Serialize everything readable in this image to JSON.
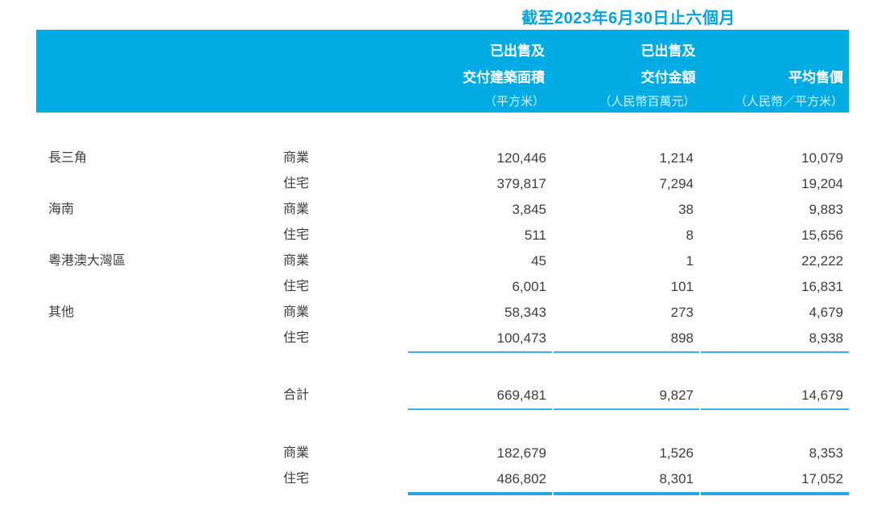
{
  "page": {
    "title": "截至2023年6月30日止六個月",
    "accent_color": "#00ACE3",
    "rule_color": "#35B3E4",
    "text_color": "#3D3D3D"
  },
  "table": {
    "header": {
      "col_area": {
        "line1": "已出售及",
        "line2": "交付建築面積",
        "unit": "（平方米）"
      },
      "col_amount": {
        "line1": "已出售及",
        "line2": "交付金額",
        "unit": "（人民幣百萬元）"
      },
      "col_price": {
        "line1": "",
        "line2": "平均售價",
        "unit": "（人民幣／平方米）"
      }
    },
    "rows": [
      {
        "region": "長三角",
        "type": "商業",
        "area": "120,446",
        "amount": "1,214",
        "price": "10,079"
      },
      {
        "region": "",
        "type": "住宅",
        "area": "379,817",
        "amount": "7,294",
        "price": "19,204"
      },
      {
        "region": "海南",
        "type": "商業",
        "area": "3,845",
        "amount": "38",
        "price": "9,883"
      },
      {
        "region": "",
        "type": "住宅",
        "area": "511",
        "amount": "8",
        "price": "15,656"
      },
      {
        "region": "粵港澳大灣區",
        "type": "商業",
        "area": "45",
        "amount": "1",
        "price": "22,222"
      },
      {
        "region": "",
        "type": "住宅",
        "area": "6,001",
        "amount": "101",
        "price": "16,831"
      },
      {
        "region": "其他",
        "type": "商業",
        "area": "58,343",
        "amount": "273",
        "price": "4,679"
      },
      {
        "region": "",
        "type": "住宅",
        "area": "100,473",
        "amount": "898",
        "price": "8,938"
      }
    ],
    "total": {
      "label": "合計",
      "area": "669,481",
      "amount": "9,827",
      "price": "14,679"
    },
    "summary_rows": [
      {
        "type": "商業",
        "area": "182,679",
        "amount": "1,526",
        "price": "8,353"
      },
      {
        "type": "住宅",
        "area": "486,802",
        "amount": "8,301",
        "price": "17,052"
      }
    ]
  }
}
